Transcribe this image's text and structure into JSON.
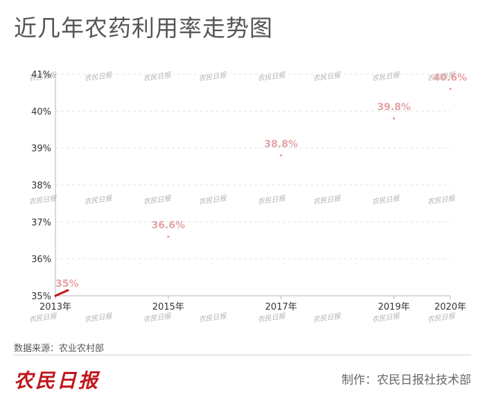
{
  "title": "近几年农药利用率走势图",
  "source": "数据来源：农业农村部",
  "logo_text": "农民日报",
  "credit": "制作：农民日报社技术部",
  "watermark_text": "农民日报",
  "colors": {
    "accent": "#c0151c",
    "label": "#e6a3a6",
    "point": "#e39ea2",
    "axis": "#b5b5b5",
    "grid": "#e3e3e3",
    "title": "#555555"
  },
  "chart_data": {
    "type": "line",
    "title": "近几年农药利用率走势图",
    "x": [
      2013,
      2015,
      2017,
      2019,
      2020
    ],
    "x_tick_labels": [
      "2013年",
      "2015年",
      "2017年",
      "2019年",
      "2020年"
    ],
    "y_tick_labels": [
      "35%",
      "36%",
      "37%",
      "38%",
      "39%",
      "40%",
      "41%"
    ],
    "series": [
      {
        "values": [
          35,
          36.6,
          38.8,
          39.8,
          40.6
        ],
        "data_labels": [
          "35%",
          "36.6%",
          "38.8%",
          "39.8%",
          "40.6%"
        ]
      }
    ],
    "xlabel": "",
    "ylabel": "",
    "xlim": [
      2013,
      2020
    ],
    "ylim": [
      35,
      41
    ],
    "grid": true
  }
}
